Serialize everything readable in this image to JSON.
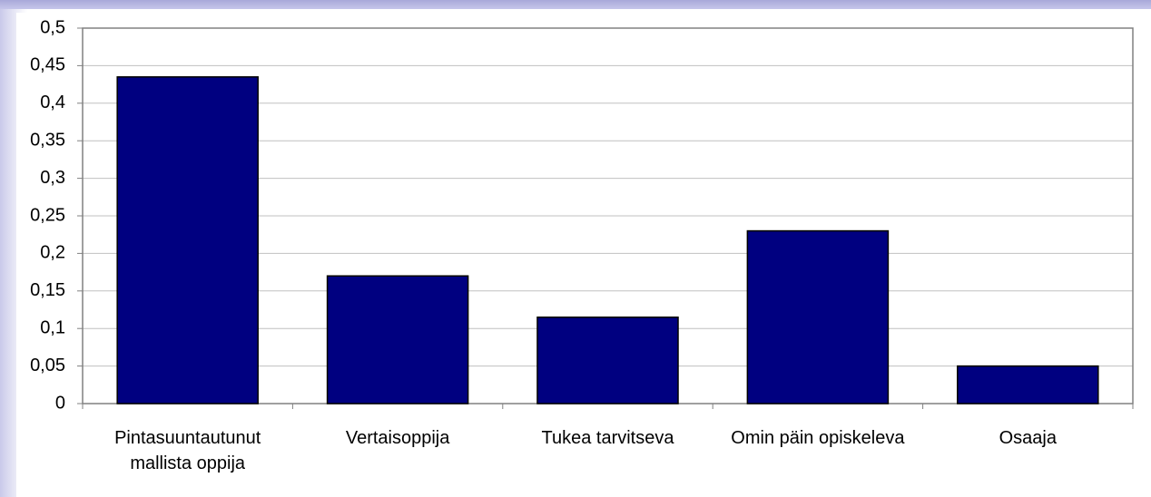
{
  "chart_data": {
    "type": "bar",
    "categories": [
      "Pintasuuntautunut mallista oppija",
      "Vertaisoppija",
      "Tukea tarvitseva",
      "Omin päin opiskeleva",
      "Osaaja"
    ],
    "values": [
      0.435,
      0.17,
      0.115,
      0.23,
      0.05
    ],
    "color": "#000080",
    "ylim": [
      0,
      0.5
    ],
    "yticks": [
      0,
      {
        "value": 0.05,
        "label": "0,05"
      },
      {
        "value": 0.1,
        "label": "0,1"
      },
      {
        "value": 0.15,
        "label": "0,15"
      },
      {
        "value": 0.2,
        "label": "0,2"
      },
      {
        "value": 0.25,
        "label": "0,25"
      },
      {
        "value": 0.3,
        "label": "0,3"
      },
      {
        "value": 0.35,
        "label": "0,35"
      },
      {
        "value": 0.4,
        "label": "0,4"
      },
      {
        "value": 0.45,
        "label": "0,45"
      },
      {
        "value": 0.5,
        "label": "0,5"
      }
    ],
    "grid": true
  }
}
